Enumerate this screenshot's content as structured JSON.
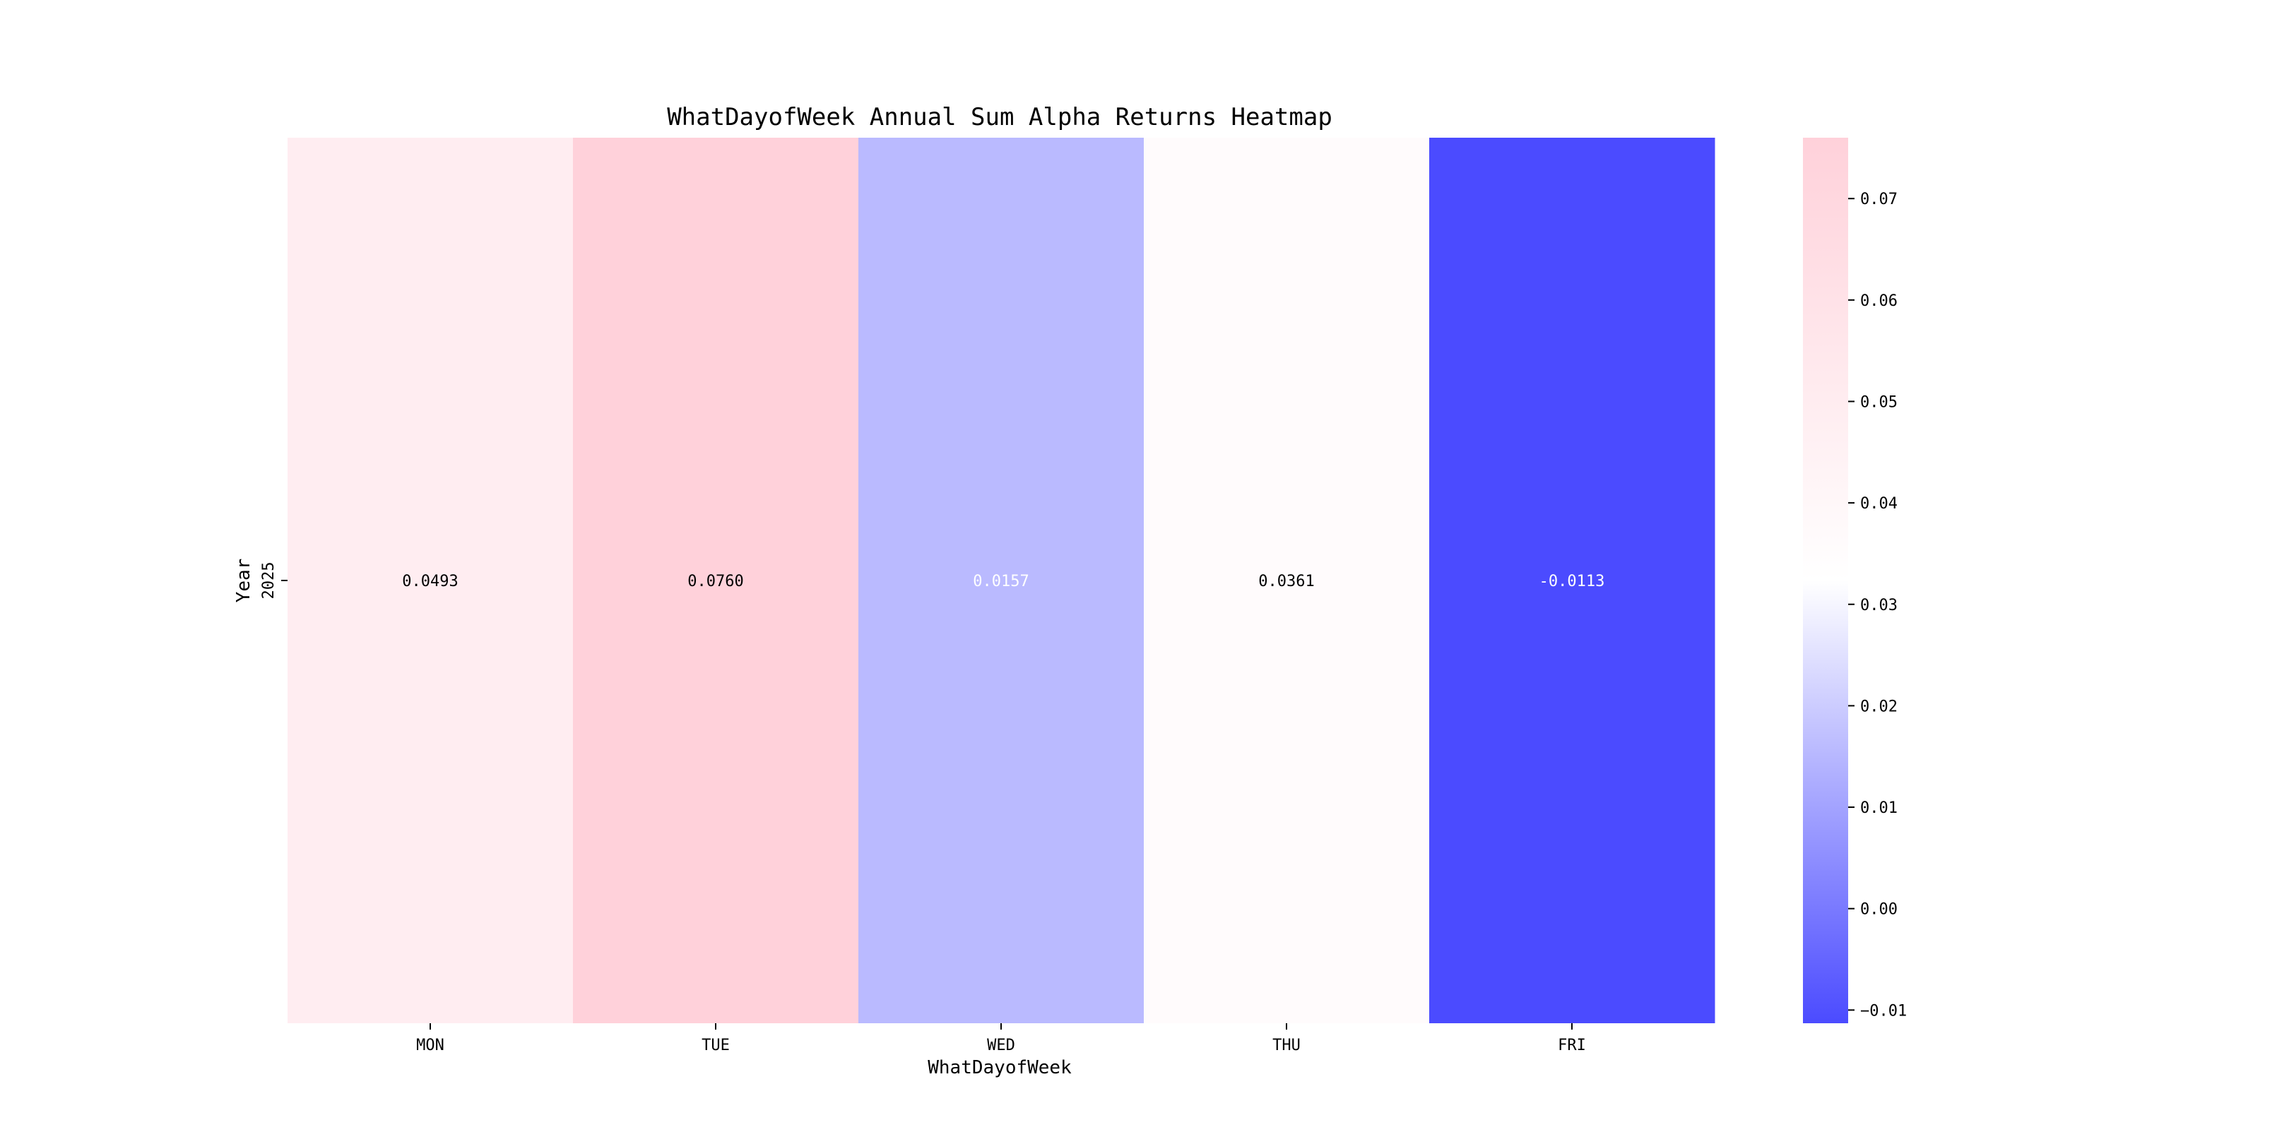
{
  "chart_data": {
    "type": "heatmap",
    "title": "WhatDayofWeek Annual Sum Alpha Returns Heatmap",
    "xlabel": "WhatDayofWeek",
    "ylabel": "Year",
    "x_categories": [
      "MON",
      "TUE",
      "WED",
      "THU",
      "FRI"
    ],
    "y_categories": [
      "2025"
    ],
    "values": [
      [
        0.0493,
        0.076,
        0.0157,
        0.0361,
        -0.0113
      ]
    ],
    "value_labels": [
      [
        "0.0493",
        "0.0760",
        "0.0157",
        "0.0361",
        "-0.0113"
      ]
    ],
    "colorbar": {
      "range": [
        -0.0113,
        0.076
      ],
      "ticks": [
        0.07,
        0.06,
        0.05,
        0.04,
        0.03,
        0.02,
        0.01,
        0.0,
        -0.01
      ],
      "tick_labels": [
        "0.07",
        "0.06",
        "0.05",
        "0.04",
        "0.03",
        "0.02",
        "0.01",
        "0.00",
        "−0.01"
      ]
    },
    "colors": {
      "min": "#4b4bff",
      "mid": "#ffffff",
      "max": "#ffd1da",
      "dark_text_threshold": 0.0361
    }
  }
}
